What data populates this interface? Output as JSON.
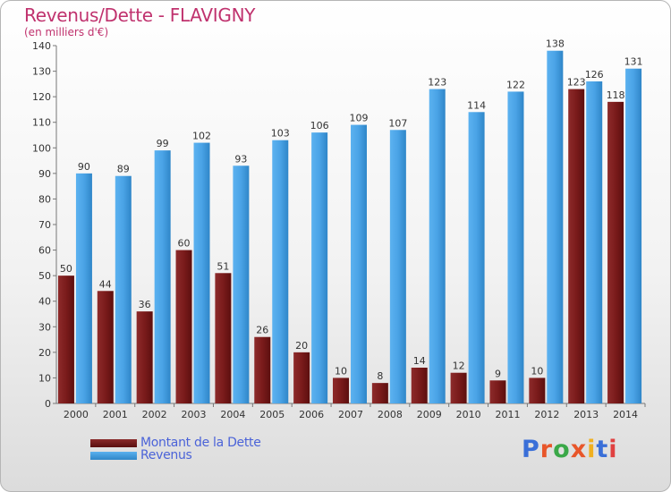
{
  "title": "Revenus/Dette - FLAVIGNY",
  "subtitle": "(en milliers d'€)",
  "logo": {
    "text": "Proxiti",
    "colors": [
      "#3a6fd8",
      "#e8562a",
      "#3aa848",
      "#e8562a",
      "#f0b020",
      "#3a6fd8",
      "#e04040"
    ]
  },
  "colors": {
    "dette": "#7a1b1b",
    "revenus": "#4aa3e6",
    "title": "#c0326e",
    "legend_text": "#4b63d8"
  },
  "chart_data": {
    "type": "bar",
    "title": "Revenus/Dette - FLAVIGNY",
    "subtitle": "(en milliers d'€)",
    "categories": [
      "2000",
      "2001",
      "2002",
      "2003",
      "2004",
      "2005",
      "2006",
      "2007",
      "2008",
      "2009",
      "2010",
      "2011",
      "2012",
      "2013",
      "2014"
    ],
    "series": [
      {
        "name": "Montant de la Dette",
        "values": [
          50,
          44,
          36,
          60,
          51,
          26,
          20,
          10,
          8,
          14,
          12,
          9,
          10,
          123,
          118
        ]
      },
      {
        "name": "Revenus",
        "values": [
          90,
          89,
          99,
          102,
          93,
          103,
          106,
          109,
          107,
          123,
          114,
          122,
          138,
          126,
          131
        ]
      }
    ],
    "ylim": [
      0,
      140
    ],
    "yticks": [
      0,
      10,
      20,
      30,
      40,
      50,
      60,
      70,
      80,
      90,
      100,
      110,
      120,
      130,
      140
    ],
    "grid": false,
    "legend": "bottom-left"
  }
}
